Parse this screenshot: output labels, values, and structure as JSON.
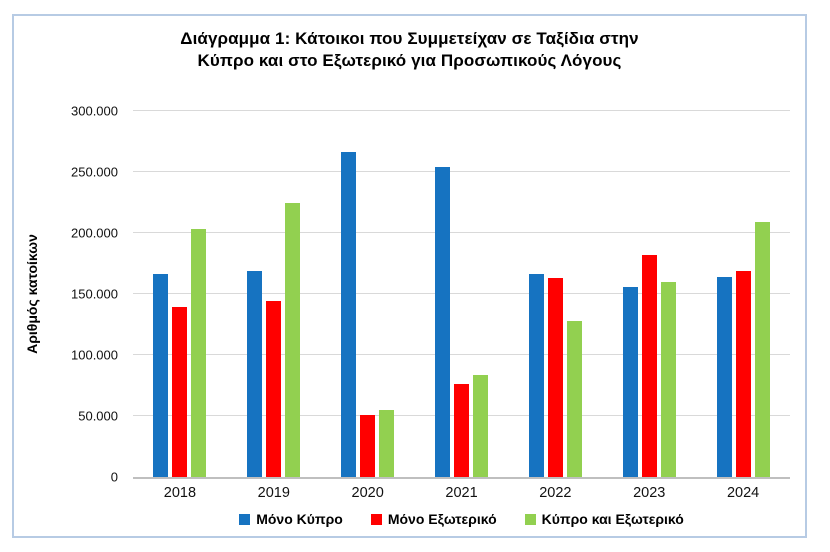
{
  "frame": {
    "border_color": "#B7CBE4",
    "background": "#FFFFFF"
  },
  "chart_data": {
    "type": "bar",
    "title": "Διάγραμμα 1: Κάτοικοι που Συμμετείχαν σε Ταξίδια στην Κύπρο και στο Εξωτερικό για Προσωπικούς Λόγους",
    "title_lines": {
      "line1": "Διάγραμμα 1: Κάτοικοι που Συμμετείχαν σε Ταξίδια στην",
      "line2": "Κύπρο και στο Εξωτερικό για Προσωπικούς Λόγους"
    },
    "ylabel": "Αριθμός κατοίκων",
    "xlabel": "",
    "ylim": [
      0,
      300000
    ],
    "grid": true,
    "gridline_color": "#D9D9D9",
    "axis_color": "#BFBFBF",
    "legend_position": "bottom",
    "yticks": [
      {
        "value": 0,
        "label": "0"
      },
      {
        "value": 50000,
        "label": "50.000"
      },
      {
        "value": 100000,
        "label": "100.000"
      },
      {
        "value": 150000,
        "label": "150.000"
      },
      {
        "value": 200000,
        "label": "200.000"
      },
      {
        "value": 250000,
        "label": "250.000"
      },
      {
        "value": 300000,
        "label": "300.000"
      }
    ],
    "categories": [
      "2018",
      "2019",
      "2020",
      "2021",
      "2022",
      "2023",
      "2024"
    ],
    "series": [
      {
        "name": "Μόνο Κύπρο",
        "color": "#1673C1",
        "values": [
          166000,
          169000,
          266000,
          254000,
          166000,
          156000,
          164000
        ]
      },
      {
        "name": "Μόνο Εξωτερικό",
        "color": "#FF0000",
        "values": [
          139000,
          144000,
          51000,
          76000,
          163000,
          182000,
          169000
        ]
      },
      {
        "name": "Κύπρο και Εξωτερικό",
        "color": "#92D050",
        "values": [
          203000,
          225000,
          55000,
          84000,
          128000,
          160000,
          209000
        ]
      }
    ]
  }
}
